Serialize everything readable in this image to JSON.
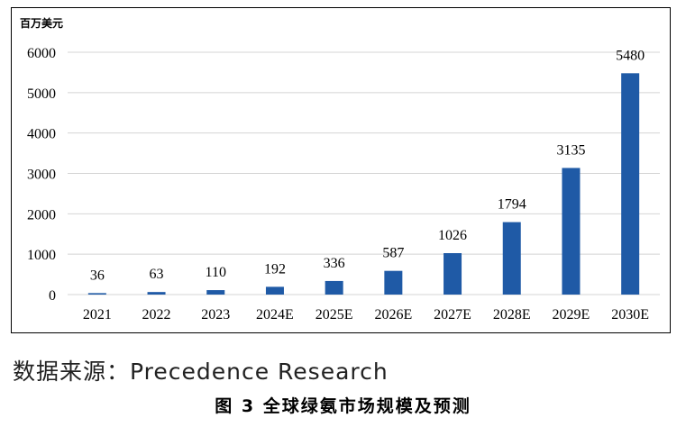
{
  "chart_data": {
    "type": "bar",
    "title": "",
    "unit_label": "百万美元",
    "categories": [
      "2021",
      "2022",
      "2023",
      "2024E",
      "2025E",
      "2026E",
      "2027E",
      "2028E",
      "2029E",
      "2030E"
    ],
    "values": [
      36,
      63,
      110,
      192,
      336,
      587,
      1026,
      1794,
      3135,
      5480
    ],
    "yticks": [
      0,
      1000,
      2000,
      3000,
      4000,
      5000,
      6000
    ],
    "ylim": [
      0,
      6000
    ],
    "grid": true,
    "bar_color": "#1f5aa6",
    "grid_color": "#d4d4d4"
  },
  "source": "数据来源：Precedence Research",
  "caption": "图 3  全球绿氨市场规模及预测"
}
